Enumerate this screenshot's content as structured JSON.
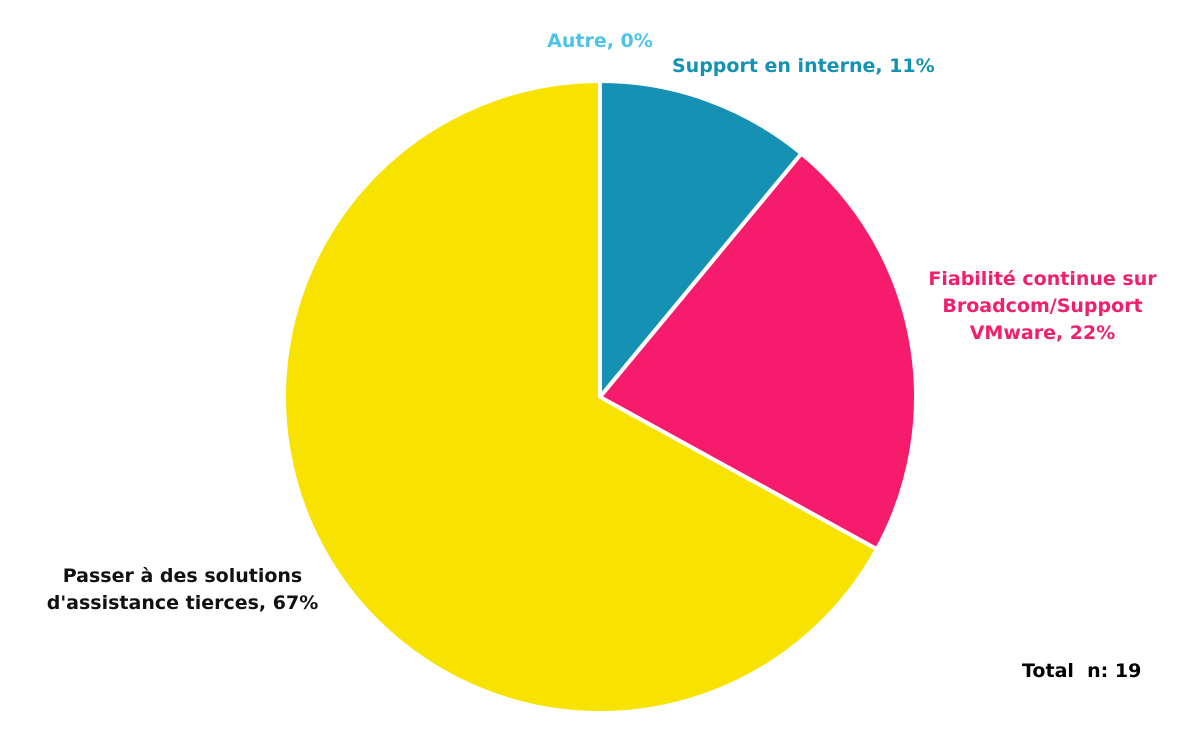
{
  "chart_data": {
    "type": "pie",
    "values": [
      0,
      11,
      22,
      67
    ],
    "value_labels": [
      "Autre, 0%",
      "Support en interne, 11%",
      "Fiabilité continue sur Broadcom/Support VMware, 22%",
      "Passer à des solutions d'assistance tierces, 67%"
    ],
    "colors": [
      "#4dc3eb",
      "#1592b3",
      "#f71b6c",
      "#f8e300"
    ],
    "annotation": "Total  n: 19"
  }
}
